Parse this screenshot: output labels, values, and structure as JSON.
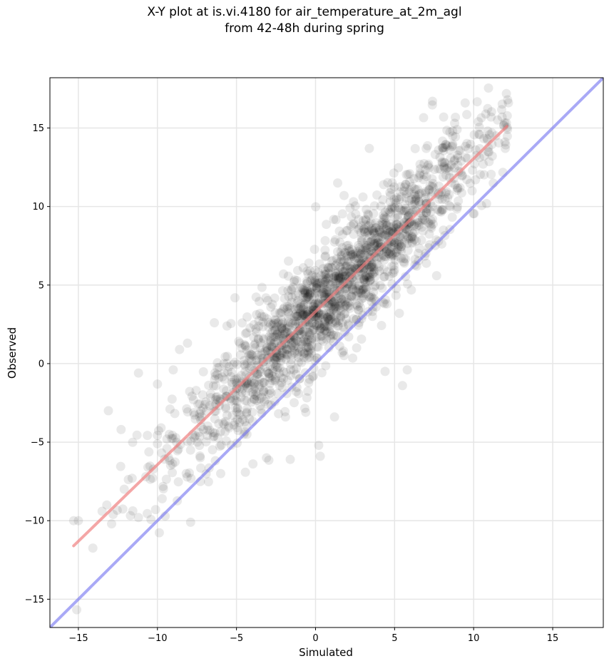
{
  "chart_data": {
    "type": "scatter",
    "title": "X-Y plot at is.vi.4180 for air_temperature_at_2m_agl",
    "subtitle": "from 42-48h during spring",
    "xlabel": "Simulated",
    "ylabel": "Observed",
    "xlim": [
      -16.8,
      18.2
    ],
    "ylim": [
      -16.8,
      18.2
    ],
    "xticks": [
      -15,
      -10,
      -5,
      0,
      5,
      10,
      15
    ],
    "yticks": [
      -15,
      -10,
      -5,
      0,
      5,
      10,
      15
    ],
    "xtick_labels": [
      "−15",
      "−10",
      "−5",
      "0",
      "5",
      "10",
      "15"
    ],
    "ytick_labels": [
      "−15",
      "−10",
      "−5",
      "0",
      "5",
      "10",
      "15"
    ],
    "grid": true,
    "colors": {
      "points": "#000000",
      "fit_line": "#f08080",
      "identity_line": "#6f6ff0",
      "grid": "#e6e6e6"
    },
    "identity_line": {
      "x": [
        -16.8,
        18.2
      ],
      "y": [
        -16.8,
        18.2
      ]
    },
    "fit_line": {
      "x": [
        -15.3,
        12.1
      ],
      "y": [
        -11.6,
        15.1
      ]
    },
    "point_cloud": {
      "description": "approximately 2000 semi-transparent observations",
      "sample_points": [
        [
          -15.3,
          -10.0
        ],
        [
          -15.0,
          -10.0
        ],
        [
          -13.5,
          -9.4
        ],
        [
          -13.2,
          -9.0
        ],
        [
          -13.1,
          -3.0
        ],
        [
          -12.9,
          -10.2
        ],
        [
          -12.8,
          -9.6
        ],
        [
          -12.3,
          -4.2
        ],
        [
          -12.1,
          -8.0
        ],
        [
          -11.6,
          -7.3
        ],
        [
          -11.2,
          -9.8
        ],
        [
          -11.2,
          -0.6
        ],
        [
          -10.6,
          -6.6
        ],
        [
          -10.0,
          -5.1
        ],
        [
          -10.0,
          -1.3
        ],
        [
          -9.7,
          -8.6
        ],
        [
          -9.4,
          -4.8
        ],
        [
          -9.0,
          -0.4
        ],
        [
          -8.6,
          0.9
        ],
        [
          -8.1,
          1.3
        ],
        [
          -7.9,
          -10.1
        ],
        [
          -7.6,
          -4.6
        ],
        [
          -7.0,
          -2.6
        ],
        [
          -6.4,
          2.6
        ],
        [
          -6.0,
          -7.0
        ],
        [
          -5.6,
          2.4
        ],
        [
          -5.0,
          -1.0
        ],
        [
          -4.5,
          1.2
        ],
        [
          -4.0,
          -3.1
        ],
        [
          -3.5,
          1.0
        ],
        [
          -3.1,
          -6.0
        ],
        [
          -2.4,
          2.0
        ],
        [
          -2.0,
          1.2
        ],
        [
          -1.9,
          -3.4
        ],
        [
          -1.6,
          -6.1
        ],
        [
          -1.5,
          3.9
        ],
        [
          -1.0,
          2.1
        ],
        [
          -0.5,
          3.4
        ],
        [
          0.0,
          3.0
        ],
        [
          0.2,
          -5.2
        ],
        [
          0.3,
          -5.9
        ],
        [
          0.4,
          4.1
        ],
        [
          0.6,
          6.8
        ],
        [
          1.0,
          4.0
        ],
        [
          1.2,
          -3.4
        ],
        [
          1.4,
          11.5
        ],
        [
          1.8,
          5.2
        ],
        [
          2.4,
          6.8
        ],
        [
          2.6,
          1.0
        ],
        [
          3.1,
          8.4
        ],
        [
          3.4,
          13.7
        ],
        [
          3.6,
          3.0
        ],
        [
          4.2,
          8.1
        ],
        [
          4.4,
          -0.5
        ],
        [
          4.8,
          11.1
        ],
        [
          5.3,
          3.2
        ],
        [
          5.5,
          -1.4
        ],
        [
          5.8,
          -0.4
        ],
        [
          6.1,
          9.6
        ],
        [
          6.6,
          12.1
        ],
        [
          7.0,
          13.7
        ],
        [
          7.4,
          16.7
        ],
        [
          7.8,
          11.3
        ],
        [
          8.1,
          15.7
        ],
        [
          8.5,
          13.6
        ],
        [
          8.8,
          15.3
        ],
        [
          9.2,
          12.9
        ],
        [
          9.9,
          11.0
        ],
        [
          10.3,
          15.4
        ],
        [
          10.6,
          12.7
        ],
        [
          11.1,
          15.7
        ],
        [
          11.4,
          14.5
        ],
        [
          11.8,
          15.7
        ],
        [
          12.0,
          13.7
        ],
        [
          12.2,
          16.6
        ]
      ]
    }
  }
}
